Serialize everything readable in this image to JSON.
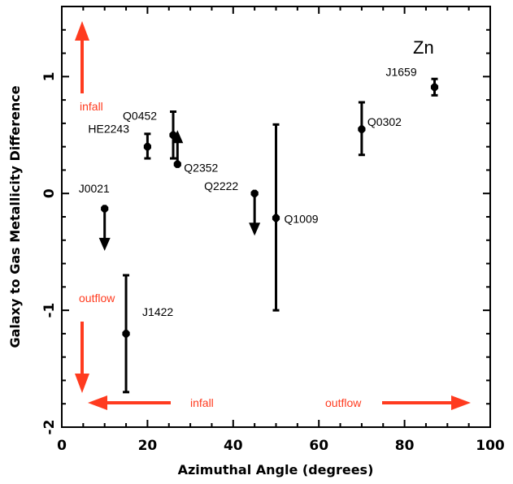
{
  "chart_data": {
    "type": "scatter",
    "title": "",
    "xlabel": "Azimuthal Angle (degrees)",
    "ylabel": "Galaxy to Gas Metallicity Difference",
    "xlim": [
      0,
      100
    ],
    "ylim": [
      -2,
      1.6
    ],
    "x_ticks": [
      0,
      20,
      40,
      60,
      80,
      100
    ],
    "y_ticks": [
      -2,
      -1,
      0,
      1
    ],
    "grid": false,
    "ion": "Zn",
    "colors": {
      "points": "#000000",
      "annotations": "#ff3b1f"
    },
    "points": [
      {
        "name": "J1659",
        "x": 87,
        "y": 0.91,
        "y_low": 0.84,
        "y_high": 0.98,
        "limit": "none"
      },
      {
        "name": "Q0302",
        "x": 70,
        "y": 0.55,
        "y_low": 0.33,
        "y_high": 0.78,
        "limit": "none"
      },
      {
        "name": "Q0452",
        "x": 26,
        "y": 0.5,
        "y_low": 0.3,
        "y_high": 0.7,
        "limit": "none"
      },
      {
        "name": "HE2243",
        "x": 20,
        "y": 0.4,
        "y_low": 0.3,
        "y_high": 0.51,
        "limit": "none"
      },
      {
        "name": "Q2352",
        "x": 27,
        "y": 0.25,
        "y_low": 0.25,
        "y_high": 0.25,
        "limit": "lower"
      },
      {
        "name": "Q2222",
        "x": 45,
        "y": 0.0,
        "y_low": 0.0,
        "y_high": 0.0,
        "limit": "upper"
      },
      {
        "name": "Q1009",
        "x": 50,
        "y": -0.21,
        "y_low": -1.0,
        "y_high": 0.59,
        "limit": "none"
      },
      {
        "name": "J0021",
        "x": 10,
        "y": -0.13,
        "y_low": -0.13,
        "y_high": -0.13,
        "limit": "upper"
      },
      {
        "name": "J1422",
        "x": 15,
        "y": -1.2,
        "y_low": -1.7,
        "y_high": -0.7,
        "limit": "none"
      }
    ],
    "annotations": [
      {
        "text": "infall",
        "where": "left, upper"
      },
      {
        "text": "outflow",
        "where": "left, lower"
      },
      {
        "text": "infall",
        "where": "bottom, left"
      },
      {
        "text": "outflow",
        "where": "bottom, right"
      }
    ]
  }
}
